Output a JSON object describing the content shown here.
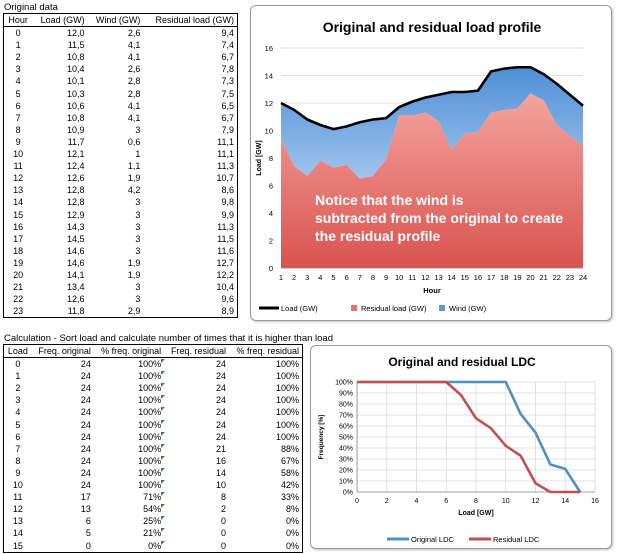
{
  "top_section": {
    "caption": "Original data",
    "headers": [
      "Hour",
      "Load (GW)",
      "Wind (GW)",
      "Residual load (GW)"
    ],
    "rows": [
      [
        "0",
        "12,0",
        "2,6",
        "9,4"
      ],
      [
        "1",
        "11,5",
        "4,1",
        "7,4"
      ],
      [
        "2",
        "10,8",
        "4,1",
        "6,7"
      ],
      [
        "3",
        "10,4",
        "2,6",
        "7,8"
      ],
      [
        "4",
        "10,1",
        "2,8",
        "7,3"
      ],
      [
        "5",
        "10,3",
        "2,8",
        "7,5"
      ],
      [
        "6",
        "10,6",
        "4,1",
        "6,5"
      ],
      [
        "7",
        "10,8",
        "4,1",
        "6,7"
      ],
      [
        "8",
        "10,9",
        "3",
        "7,9"
      ],
      [
        "9",
        "11,7",
        "0,6",
        "11,1"
      ],
      [
        "10",
        "12,1",
        "1",
        "11,1"
      ],
      [
        "11",
        "12,4",
        "1,1",
        "11,3"
      ],
      [
        "12",
        "12,6",
        "1,9",
        "10,7"
      ],
      [
        "13",
        "12,8",
        "4,2",
        "8,6"
      ],
      [
        "14",
        "12,8",
        "3",
        "9,8"
      ],
      [
        "15",
        "12,9",
        "3",
        "9,9"
      ],
      [
        "16",
        "14,3",
        "3",
        "11,3"
      ],
      [
        "17",
        "14,5",
        "3",
        "11,5"
      ],
      [
        "18",
        "14,6",
        "3",
        "11,6"
      ],
      [
        "19",
        "14,6",
        "1,9",
        "12,7"
      ],
      [
        "20",
        "14,1",
        "1,9",
        "12,2"
      ],
      [
        "21",
        "13,4",
        "3",
        "10,4"
      ],
      [
        "22",
        "12,6",
        "3",
        "9,6"
      ],
      [
        "23",
        "11,8",
        "2,9",
        "8,9"
      ]
    ]
  },
  "bottom_section": {
    "caption": "Calculation - Sort load and calculate number of times that it is higher than load",
    "headers": [
      "Load",
      "Freq. original",
      "% freq. original",
      "Freq. residual",
      "% freq. residual"
    ],
    "rows": [
      [
        "0",
        "24",
        "100%",
        "24",
        "100%"
      ],
      [
        "1",
        "24",
        "100%",
        "24",
        "100%"
      ],
      [
        "2",
        "24",
        "100%",
        "24",
        "100%"
      ],
      [
        "3",
        "24",
        "100%",
        "24",
        "100%"
      ],
      [
        "4",
        "24",
        "100%",
        "24",
        "100%"
      ],
      [
        "5",
        "24",
        "100%",
        "24",
        "100%"
      ],
      [
        "6",
        "24",
        "100%",
        "24",
        "100%"
      ],
      [
        "7",
        "24",
        "100%",
        "21",
        "88%"
      ],
      [
        "8",
        "24",
        "100%",
        "16",
        "67%"
      ],
      [
        "9",
        "24",
        "100%",
        "14",
        "58%"
      ],
      [
        "10",
        "24",
        "100%",
        "10",
        "42%"
      ],
      [
        "11",
        "17",
        "71%",
        "8",
        "33%"
      ],
      [
        "12",
        "13",
        "54%",
        "2",
        "8%"
      ],
      [
        "13",
        "6",
        "25%",
        "0",
        "0%"
      ],
      [
        "14",
        "5",
        "21%",
        "0",
        "0%"
      ],
      [
        "15",
        "0",
        "0%",
        "0",
        "0%"
      ]
    ]
  },
  "chart_data": [
    {
      "type": "area",
      "title": "Original and residual load profile",
      "xlabel": "Hour",
      "ylabel": "Load [GW]",
      "x": [
        1,
        2,
        3,
        4,
        5,
        6,
        7,
        8,
        9,
        10,
        11,
        12,
        13,
        14,
        15,
        16,
        17,
        18,
        19,
        20,
        21,
        22,
        23,
        24
      ],
      "xlim": [
        1,
        24
      ],
      "ylim": [
        0,
        16
      ],
      "yticks": [
        0,
        2,
        4,
        6,
        8,
        10,
        12,
        14,
        16
      ],
      "series": [
        {
          "name": "Load (GW)",
          "color": "#000000",
          "values": [
            12.0,
            11.5,
            10.8,
            10.4,
            10.1,
            10.3,
            10.6,
            10.8,
            10.9,
            11.7,
            12.1,
            12.4,
            12.6,
            12.8,
            12.8,
            12.9,
            14.3,
            14.5,
            14.6,
            14.6,
            14.1,
            13.4,
            12.6,
            11.8
          ]
        },
        {
          "name": "Residual load (GW)",
          "color": "#e8706a",
          "values": [
            9.4,
            7.4,
            6.7,
            7.8,
            7.3,
            7.5,
            6.5,
            6.7,
            7.9,
            11.1,
            11.1,
            11.3,
            10.7,
            8.6,
            9.8,
            9.9,
            11.3,
            11.5,
            11.6,
            12.7,
            12.2,
            10.4,
            9.6,
            8.9
          ]
        },
        {
          "name": "Wind (GW)",
          "color": "#5b9bd5",
          "values": [
            2.6,
            4.1,
            4.1,
            2.6,
            2.8,
            2.8,
            4.1,
            4.1,
            3,
            0.6,
            1,
            1.1,
            1.9,
            4.2,
            3,
            3,
            3,
            3,
            3,
            1.9,
            1.9,
            3,
            3,
            2.9
          ]
        }
      ],
      "annotation": "Notice that the wind is subtracted from the original to create the residual profile",
      "legend_position": "bottom"
    },
    {
      "type": "line",
      "title": "Original and residual LDC",
      "xlabel": "Load [GW]",
      "ylabel": "Frequency [%]",
      "x": [
        0,
        1,
        2,
        3,
        4,
        5,
        6,
        7,
        8,
        9,
        10,
        11,
        12,
        13,
        14,
        15
      ],
      "xlim": [
        0,
        16
      ],
      "xticks": [
        0,
        2,
        4,
        6,
        8,
        10,
        12,
        14,
        16
      ],
      "ylim": [
        0,
        100
      ],
      "yticks": [
        0,
        10,
        20,
        30,
        40,
        50,
        60,
        70,
        80,
        90,
        100
      ],
      "series": [
        {
          "name": "Original LDC",
          "color": "#4f8fc4",
          "values": [
            100,
            100,
            100,
            100,
            100,
            100,
            100,
            100,
            100,
            100,
            100,
            71,
            54,
            25,
            21,
            0
          ]
        },
        {
          "name": "Residual LDC",
          "color": "#c0504d",
          "values": [
            100,
            100,
            100,
            100,
            100,
            100,
            100,
            88,
            67,
            58,
            42,
            33,
            8,
            0,
            0,
            0
          ]
        }
      ],
      "legend_position": "bottom"
    }
  ]
}
